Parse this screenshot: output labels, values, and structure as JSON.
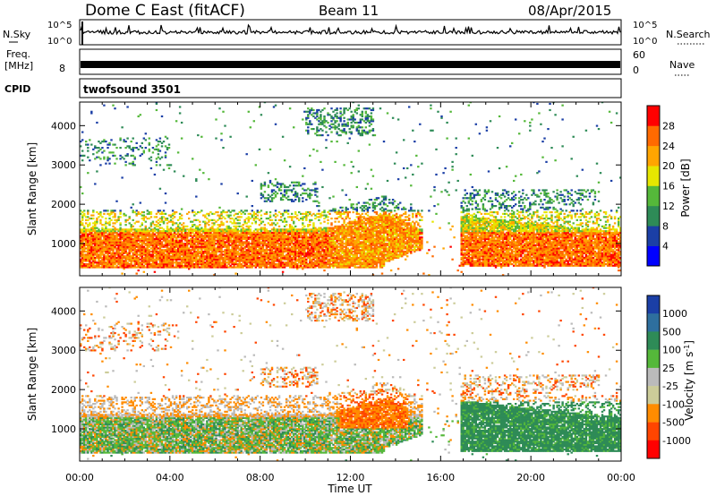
{
  "header": {
    "title": "Dome C East (fitACF)",
    "beam": "Beam 11",
    "date": "08/Apr/2015"
  },
  "noise_panel": {
    "left_label": "N.Sky",
    "left_ticks": [
      "10^5",
      "10^0"
    ],
    "right_label": "N.Search",
    "right_ticks": [
      "10^5",
      "10^0"
    ]
  },
  "freq_panel": {
    "left_label_1": "Freq.",
    "left_label_2": "[MHz]",
    "left_tick": "8",
    "right_label": "Nave",
    "right_ticks": [
      "60",
      "0"
    ]
  },
  "cpid": {
    "label": "CPID",
    "value": "twofsound 3501"
  },
  "colors": {
    "power": [
      "#0000ff",
      "#1b3fa6",
      "#2e8b57",
      "#55b83a",
      "#e6e600",
      "#ffa500",
      "#ff6a00",
      "#ff0000"
    ],
    "velocity": [
      "#1b3fa6",
      "#2e6f9e",
      "#2e8b57",
      "#55b83a",
      "#bbbbbb",
      "#cccc99",
      "#ff8c00",
      "#ff4500",
      "#ff0000"
    ]
  },
  "chart_data": [
    {
      "type": "heatmap",
      "title": "Power",
      "xlabel": "",
      "ylabel": "Slant Range [km]",
      "x_ticks": [
        "00:00",
        "04:00",
        "08:00",
        "12:00",
        "16:00",
        "20:00",
        "00:00"
      ],
      "y_ticks": [
        "1000",
        "2000",
        "3000",
        "4000"
      ],
      "xlim": [
        0,
        24
      ],
      "ylim": [
        180,
        4600
      ],
      "colorbar": {
        "label": "Power [dB]",
        "ticks": [
          "4",
          "8",
          "12",
          "16",
          "20",
          "24",
          "28"
        ]
      }
    },
    {
      "type": "heatmap",
      "title": "Velocity",
      "xlabel": "Time UT",
      "ylabel": "Slant Range [km]",
      "x_ticks": [
        "00:00",
        "04:00",
        "08:00",
        "12:00",
        "16:00",
        "20:00",
        "00:00"
      ],
      "y_ticks": [
        "1000",
        "2000",
        "3000",
        "4000"
      ],
      "xlim": [
        0,
        24
      ],
      "ylim": [
        180,
        4600
      ],
      "colorbar": {
        "label": "Velocity [m s^-1]",
        "ticks": [
          "1000",
          "500",
          "100",
          "25",
          "-25",
          "-100",
          "-500",
          "-1000"
        ]
      }
    }
  ]
}
